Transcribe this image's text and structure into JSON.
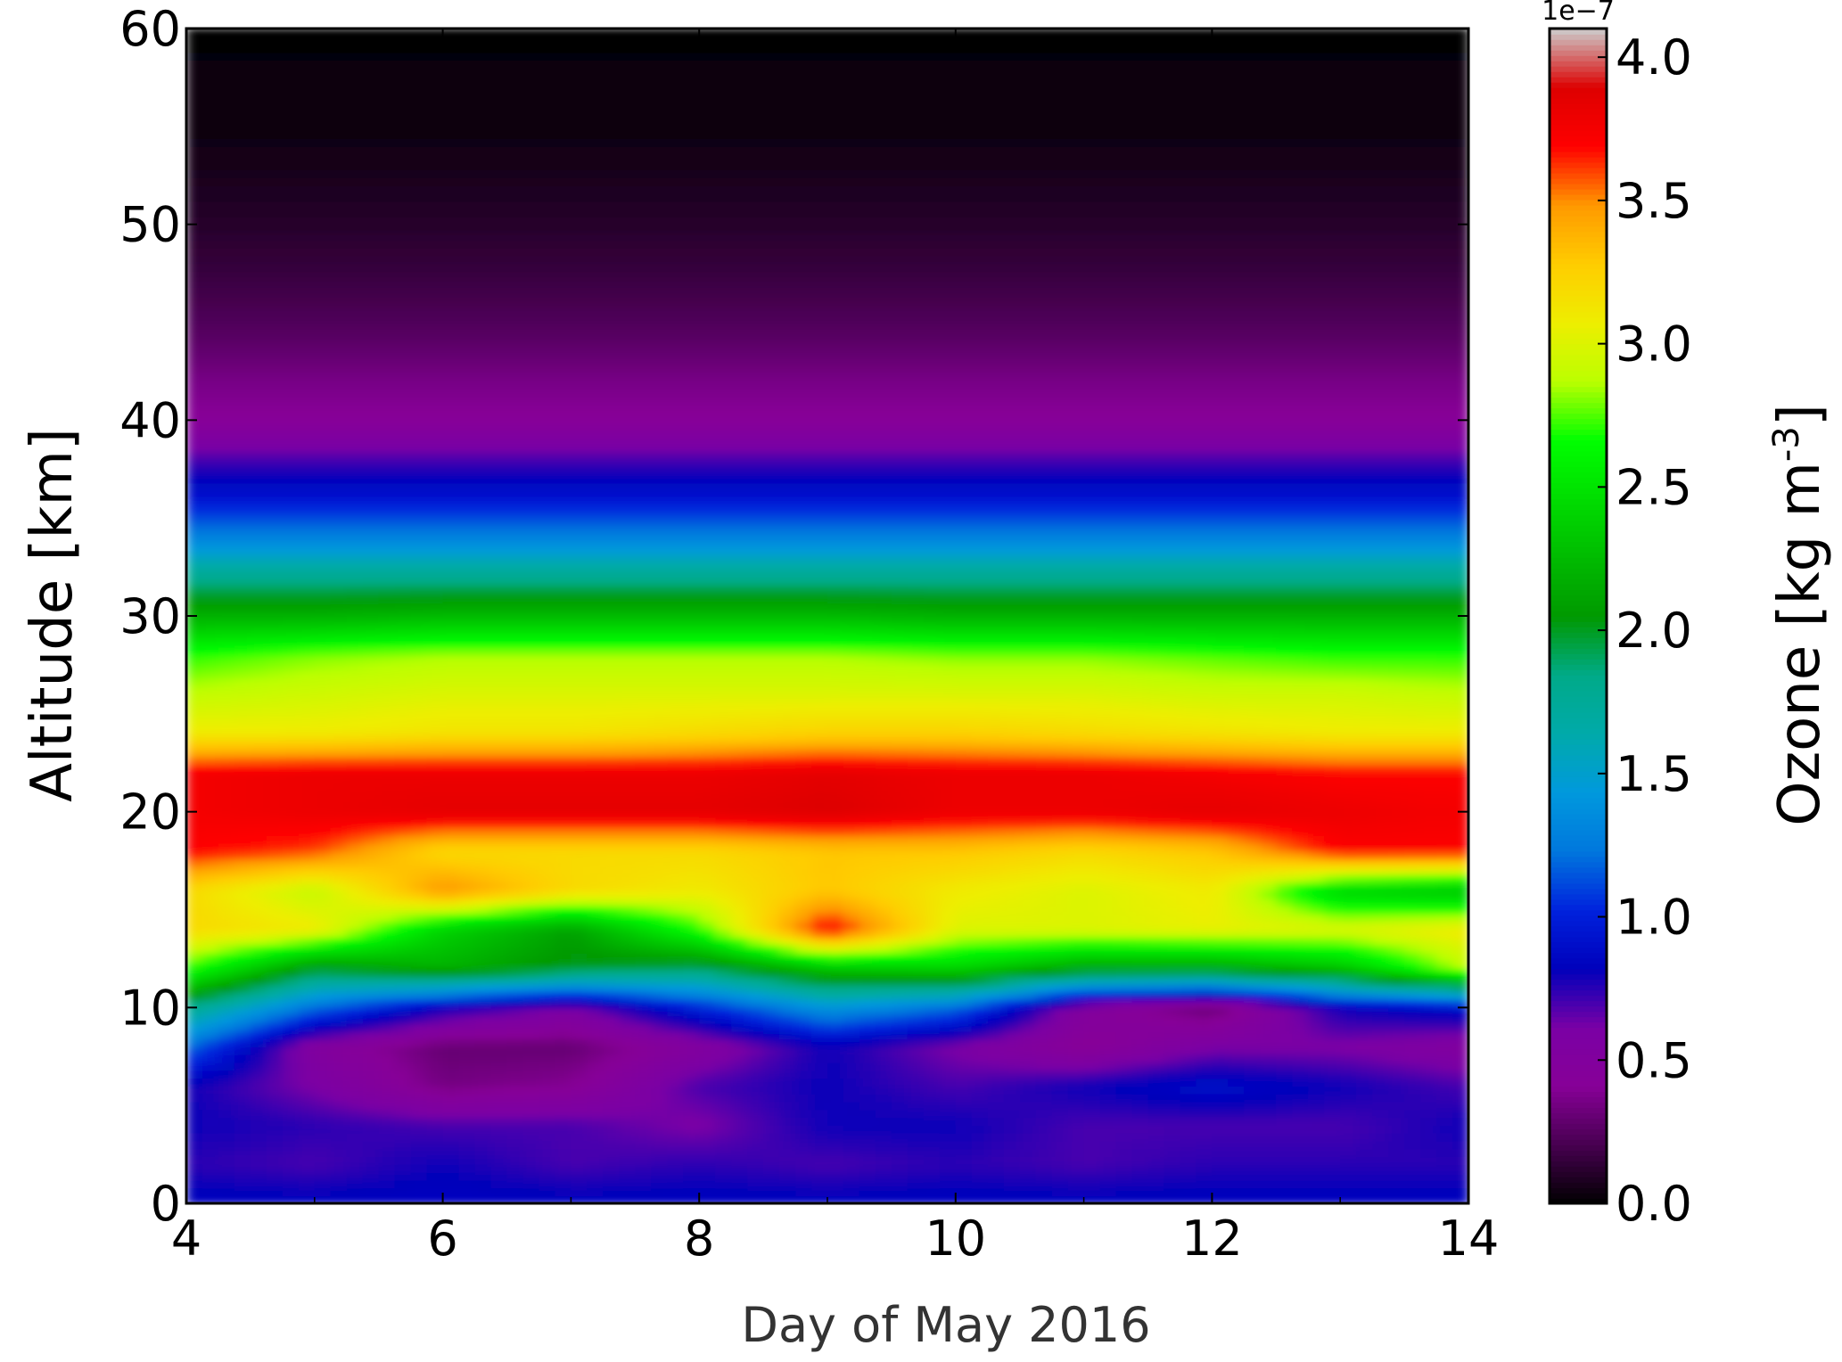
{
  "chart_data": {
    "type": "heatmap",
    "title": "",
    "xlabel": "Day of May 2016",
    "ylabel": "Altitude [km]",
    "xlim": [
      4,
      14
    ],
    "ylim": [
      0,
      60
    ],
    "xticks": [
      "4",
      "6",
      "8",
      "10",
      "12",
      "14"
    ],
    "xtick_values": [
      4,
      6,
      8,
      10,
      12,
      14
    ],
    "yticks": [
      "0",
      "10",
      "20",
      "30",
      "40",
      "50",
      "60"
    ],
    "ytick_values": [
      0,
      10,
      20,
      30,
      40,
      50,
      60
    ],
    "colorbar": {
      "label_main": "Ozone [kg m",
      "label_exp": "-3",
      "label_close": "]",
      "offset_text": "1e−7",
      "range": [
        0.0,
        4.1
      ],
      "ticks": [
        "0.0",
        "0.5",
        "1.0",
        "1.5",
        "2.0",
        "2.5",
        "3.0",
        "3.5",
        "4.0"
      ],
      "tick_values": [
        0.0,
        0.5,
        1.0,
        1.5,
        2.0,
        2.5,
        3.0,
        3.5,
        4.0
      ],
      "colormap": "nipy_spectral",
      "colormap_stops": [
        [
          0.0,
          "#000000"
        ],
        [
          0.05,
          "#470050"
        ],
        [
          0.1,
          "#870097"
        ],
        [
          0.15,
          "#7a00a5"
        ],
        [
          0.2,
          "#0000bb"
        ],
        [
          0.25,
          "#0022dd"
        ],
        [
          0.3,
          "#0077dd"
        ],
        [
          0.35,
          "#0099dd"
        ],
        [
          0.4,
          "#00aaaa"
        ],
        [
          0.45,
          "#00aa88"
        ],
        [
          0.5,
          "#009900"
        ],
        [
          0.55,
          "#00bb00"
        ],
        [
          0.6,
          "#00dd00"
        ],
        [
          0.65,
          "#00ff00"
        ],
        [
          0.7,
          "#bbff00"
        ],
        [
          0.75,
          "#eeee00"
        ],
        [
          0.8,
          "#ffcc00"
        ],
        [
          0.85,
          "#ff9900"
        ],
        [
          0.9,
          "#ff0000"
        ],
        [
          0.95,
          "#dd0000"
        ],
        [
          1.0,
          "#cccccc"
        ]
      ]
    },
    "x_days": [
      4,
      5,
      6,
      7,
      8,
      9,
      10,
      11,
      12,
      13,
      14
    ],
    "y_altitudes_km": [
      0,
      2,
      4,
      6,
      8,
      10,
      12,
      14,
      16,
      18,
      20,
      22,
      24,
      26,
      28,
      30,
      32,
      34,
      36,
      38,
      40,
      42,
      44,
      46,
      48,
      50,
      52,
      54,
      56,
      58,
      60
    ],
    "z_ozone_1e-7": [
      [
        0.85,
        0.85,
        0.85,
        0.85,
        0.85,
        0.85,
        0.85,
        0.85,
        0.85,
        0.85,
        0.85
      ],
      [
        0.75,
        0.7,
        0.8,
        0.7,
        0.75,
        0.7,
        0.75,
        0.7,
        0.75,
        0.75,
        0.75
      ],
      [
        0.8,
        0.75,
        0.7,
        0.7,
        0.6,
        0.8,
        0.8,
        0.7,
        0.7,
        0.7,
        0.8
      ],
      [
        0.8,
        0.6,
        0.35,
        0.4,
        0.7,
        0.8,
        0.7,
        0.8,
        0.9,
        0.8,
        0.7
      ],
      [
        1.2,
        0.5,
        0.3,
        0.3,
        0.5,
        0.8,
        0.6,
        0.4,
        0.6,
        0.6,
        0.5
      ],
      [
        1.8,
        1.2,
        0.8,
        0.6,
        1.0,
        1.4,
        1.2,
        0.5,
        0.3,
        0.8,
        0.9
      ],
      [
        2.7,
        2.0,
        2.2,
        2.0,
        1.9,
        2.3,
        2.4,
        2.1,
        2.1,
        2.3,
        2.9
      ],
      [
        3.2,
        3.1,
        2.4,
        2.1,
        2.7,
        3.75,
        3.0,
        3.0,
        3.05,
        3.0,
        3.1
      ],
      [
        3.2,
        2.9,
        3.5,
        3.2,
        3.1,
        3.3,
        3.1,
        3.0,
        3.1,
        2.4,
        2.3
      ],
      [
        3.7,
        3.6,
        3.2,
        3.2,
        3.2,
        3.3,
        3.3,
        3.2,
        3.3,
        3.7,
        3.7
      ],
      [
        3.75,
        3.8,
        3.85,
        3.85,
        3.85,
        3.9,
        3.8,
        3.8,
        3.85,
        3.8,
        3.75
      ],
      [
        3.75,
        3.8,
        3.8,
        3.8,
        3.8,
        3.85,
        3.8,
        3.8,
        3.75,
        3.7,
        3.7
      ],
      [
        3.1,
        3.1,
        3.15,
        3.15,
        3.2,
        3.25,
        3.25,
        3.2,
        3.15,
        3.1,
        3.1
      ],
      [
        2.9,
        2.95,
        3.0,
        3.0,
        3.0,
        3.0,
        3.0,
        3.0,
        2.95,
        2.95,
        2.9
      ],
      [
        2.7,
        2.8,
        2.85,
        2.85,
        2.85,
        2.85,
        2.8,
        2.8,
        2.75,
        2.7,
        2.7
      ],
      [
        2.2,
        2.2,
        2.25,
        2.25,
        2.25,
        2.25,
        2.2,
        2.2,
        2.2,
        2.2,
        2.2
      ],
      [
        1.8,
        1.8,
        1.8,
        1.8,
        1.8,
        1.8,
        1.8,
        1.8,
        1.8,
        1.8,
        1.8
      ],
      [
        1.3,
        1.3,
        1.3,
        1.3,
        1.3,
        1.3,
        1.3,
        1.3,
        1.3,
        1.3,
        1.3
      ],
      [
        0.95,
        0.95,
        0.95,
        0.95,
        0.95,
        0.95,
        0.95,
        0.95,
        0.95,
        0.95,
        0.95
      ],
      [
        0.7,
        0.7,
        0.7,
        0.7,
        0.7,
        0.7,
        0.7,
        0.7,
        0.7,
        0.7,
        0.7
      ],
      [
        0.42,
        0.42,
        0.42,
        0.42,
        0.42,
        0.42,
        0.42,
        0.42,
        0.42,
        0.42,
        0.42
      ],
      [
        0.36,
        0.36,
        0.36,
        0.36,
        0.36,
        0.36,
        0.36,
        0.36,
        0.36,
        0.36,
        0.36
      ],
      [
        0.27,
        0.27,
        0.27,
        0.27,
        0.27,
        0.27,
        0.27,
        0.27,
        0.27,
        0.27,
        0.27
      ],
      [
        0.2,
        0.2,
        0.2,
        0.2,
        0.2,
        0.2,
        0.2,
        0.2,
        0.2,
        0.2,
        0.2
      ],
      [
        0.15,
        0.15,
        0.15,
        0.15,
        0.15,
        0.15,
        0.15,
        0.15,
        0.15,
        0.15,
        0.15
      ],
      [
        0.11,
        0.11,
        0.11,
        0.11,
        0.11,
        0.11,
        0.11,
        0.11,
        0.11,
        0.11,
        0.11
      ],
      [
        0.08,
        0.08,
        0.08,
        0.08,
        0.08,
        0.08,
        0.08,
        0.08,
        0.08,
        0.08,
        0.08
      ],
      [
        0.05,
        0.05,
        0.05,
        0.05,
        0.05,
        0.05,
        0.05,
        0.05,
        0.05,
        0.05,
        0.05
      ],
      [
        0.03,
        0.03,
        0.03,
        0.03,
        0.03,
        0.03,
        0.03,
        0.03,
        0.03,
        0.03,
        0.03
      ],
      [
        0.02,
        0.02,
        0.02,
        0.02,
        0.02,
        0.02,
        0.02,
        0.02,
        0.02,
        0.02,
        0.02
      ],
      [
        0.01,
        0.01,
        0.01,
        0.01,
        0.01,
        0.01,
        0.01,
        0.01,
        0.01,
        0.01,
        0.01
      ]
    ]
  }
}
